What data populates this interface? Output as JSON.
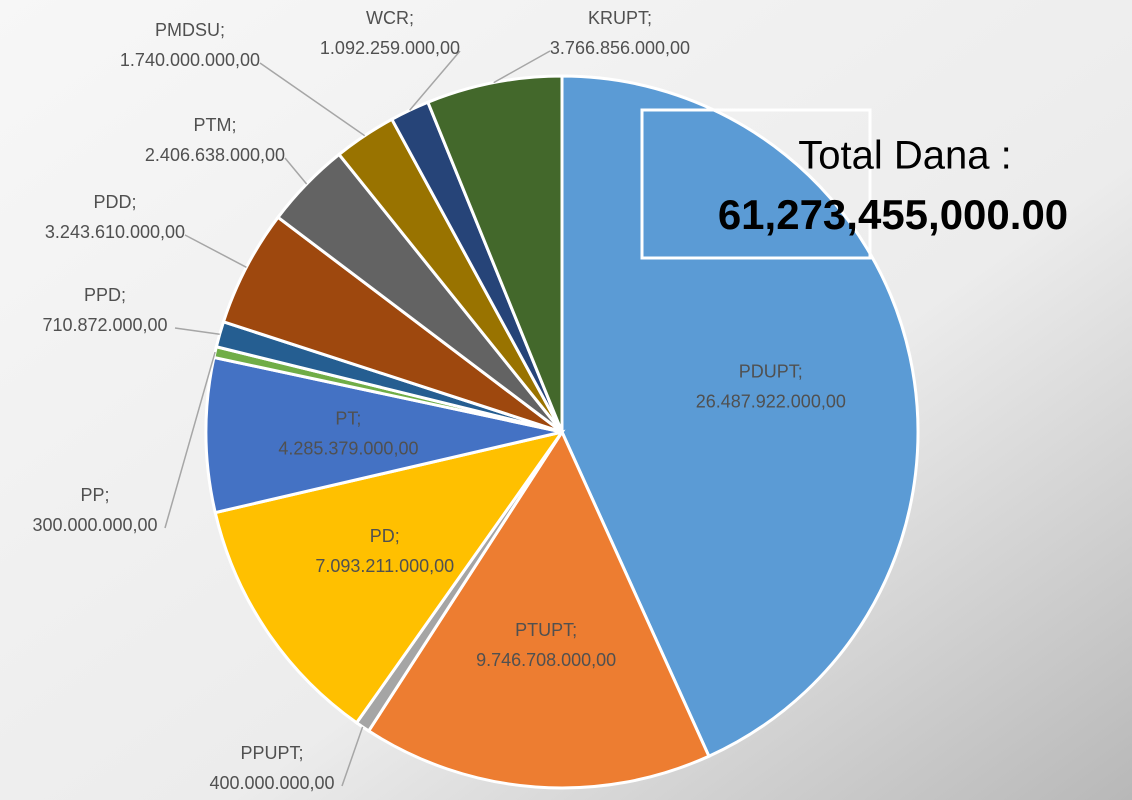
{
  "chart_data": {
    "type": "pie",
    "categories": [
      "PDUPT;",
      "PTUPT;",
      "PPUPT;",
      "PD;",
      "PT;",
      "PP;",
      "PPD;",
      "PDD;",
      "PTM;",
      "PMDSU;",
      "WCR;",
      "KRUPT;"
    ],
    "values": [
      26487922000,
      9746708000,
      400000000,
      7093211000,
      4285379000,
      300000000,
      710872000,
      3243610000,
      2406638000,
      1740000000,
      1092259000,
      3766856000
    ],
    "value_labels": [
      "26.487.922.000,00",
      "9.746.708.000,00",
      "400.000.000,00",
      "7.093.211.000,00",
      "4.285.379.000,00",
      "300.000.000,00",
      "710.872.000,00",
      "3.243.610.000,00",
      "2.406.638.000,00",
      "1.740.000.000,00",
      "1.092.259.000,00",
      "3.766.856.000,00"
    ],
    "colors": [
      "#5b9bd5",
      "#ed7d31",
      "#a5a5a5",
      "#ffc000",
      "#4472c4",
      "#70ad47",
      "#255e91",
      "#9e480e",
      "#636363",
      "#997300",
      "#264478",
      "#43682b"
    ],
    "annotations": {
      "total_label": "Total Dana :",
      "total_value": "61,273,455,000.00"
    }
  }
}
